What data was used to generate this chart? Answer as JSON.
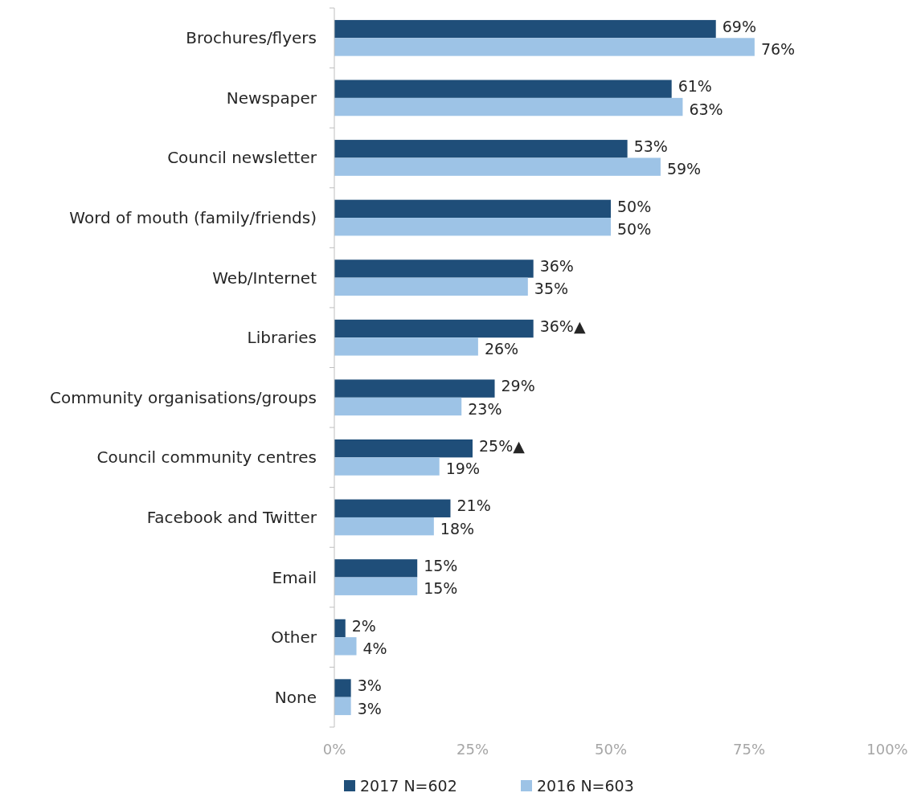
{
  "chart_data": {
    "type": "bar",
    "orientation": "horizontal",
    "categories": [
      "Brochures/flyers",
      "Newspaper",
      "Council newsletter",
      "Word of mouth (family/friends)",
      "Web/Internet",
      "Libraries",
      "Community organisations/groups",
      "Council community centres",
      "Facebook and Twitter",
      "Email",
      "Other",
      "None"
    ],
    "series": [
      {
        "name": "2017 N=602",
        "color": "#1f4e79",
        "values": [
          69,
          61,
          53,
          50,
          36,
          36,
          29,
          25,
          21,
          15,
          2,
          3
        ],
        "value_labels": [
          "69%",
          "61%",
          "53%",
          "50%",
          "36%",
          "36%▲",
          "29%",
          "25%▲",
          "21%",
          "15%",
          "2%",
          "3%"
        ]
      },
      {
        "name": "2016 N=603",
        "color": "#9dc3e6",
        "values": [
          76,
          63,
          59,
          50,
          35,
          26,
          23,
          19,
          18,
          15,
          4,
          3
        ],
        "value_labels": [
          "76%",
          "63%",
          "59%",
          "50%",
          "35%",
          "26%",
          "23%",
          "19%",
          "18%",
          "15%",
          "4%",
          "3%"
        ]
      }
    ],
    "xlim": [
      0,
      100
    ],
    "xticks": [
      {
        "value": 0,
        "label": "0%"
      },
      {
        "value": 25,
        "label": "25%"
      },
      {
        "value": 50,
        "label": "50%"
      },
      {
        "value": 75,
        "label": "75%"
      },
      {
        "value": 100,
        "label": "100%"
      }
    ],
    "grid": false,
    "legend": "bottom"
  }
}
